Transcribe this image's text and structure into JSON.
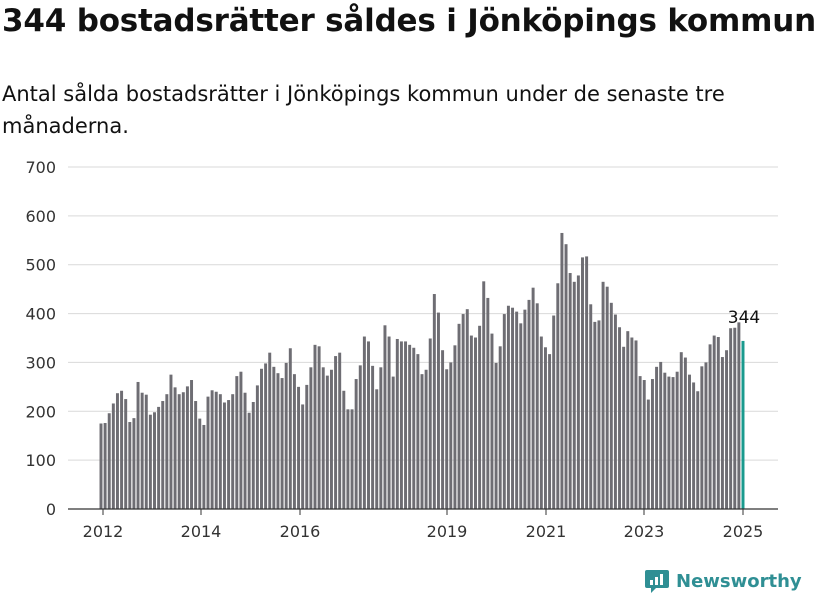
{
  "title": "344 bostadsrätter såldes i Jönköpings kommun",
  "subtitle": "Antal sålda bostadsrätter i Jönköpings kommun under de senaste tre månaderna.",
  "brand": "Newsworthy",
  "colors": {
    "bar": "#6e6d73",
    "highlight": "#1a9a8e",
    "grid": "#d9d9d9",
    "brand": "#2f8f94"
  },
  "chart_data": {
    "type": "bar",
    "title": "",
    "xlabel": "",
    "ylabel": "",
    "ylim": [
      0,
      700
    ],
    "yticks": [
      0,
      100,
      200,
      300,
      400,
      500,
      600,
      700
    ],
    "xtick_labels": [
      "2012",
      "2014",
      "2016",
      "2019",
      "2021",
      "2023",
      "2025"
    ],
    "grid": true,
    "highlight_label": "344",
    "series": [
      {
        "values": [
          175,
          176,
          196,
          216,
          237,
          242,
          225,
          178,
          186,
          260,
          238,
          234,
          193,
          198,
          209,
          221,
          235,
          275,
          249,
          235,
          239,
          251,
          264,
          221,
          185,
          172,
          230,
          243,
          240,
          235,
          218,
          223,
          235,
          272,
          281,
          238,
          197,
          219,
          253,
          287,
          298,
          320,
          291,
          278,
          268,
          299,
          329,
          276,
          250,
          214,
          254,
          290,
          336,
          333,
          290,
          273,
          285,
          313,
          320,
          242,
          204,
          204,
          266,
          294,
          353,
          343,
          293,
          245,
          290,
          376,
          353,
          271,
          348,
          343,
          343,
          336,
          330,
          317,
          276,
          285,
          349,
          440,
          402,
          325,
          286,
          300,
          335,
          379,
          399,
          409,
          355,
          351,
          375,
          466,
          432,
          359,
          299,
          333,
          399,
          416,
          412,
          404,
          380,
          408,
          428,
          453,
          421,
          353,
          331,
          317,
          396,
          462,
          565,
          542,
          483,
          465,
          478,
          515,
          517,
          419,
          383,
          386,
          465,
          455,
          422,
          398,
          372,
          332,
          364,
          351,
          345,
          272,
          264,
          224,
          266,
          291,
          301,
          279,
          271,
          270,
          281,
          321,
          310,
          275,
          259,
          241,
          292,
          300,
          337,
          355,
          352,
          311,
          325,
          370,
          371,
          382,
          344
        ]
      }
    ]
  }
}
